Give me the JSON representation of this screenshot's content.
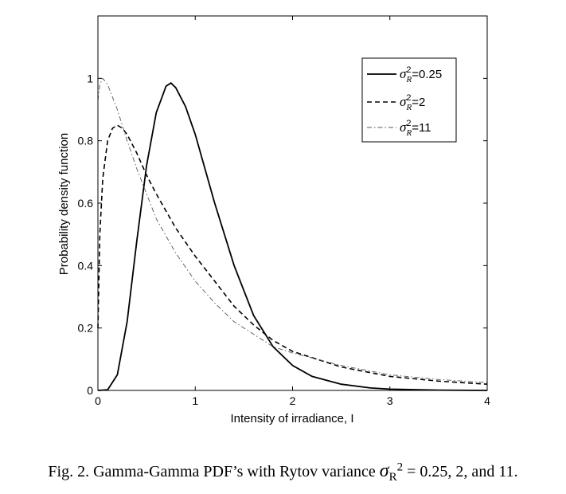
{
  "chart_data": {
    "type": "line",
    "xlabel": "Intensity of irradiance, I",
    "ylabel": "Probability density function",
    "xlim": [
      0,
      4
    ],
    "ylim": [
      0,
      1.2
    ],
    "xticks": [
      "0",
      "1",
      "2",
      "3",
      "4"
    ],
    "yticks": [
      "0",
      "0.2",
      "0.4",
      "0.6",
      "0.8",
      "1"
    ],
    "grid": false,
    "legend_position": "top-right",
    "series": [
      {
        "legend_value": "=0.25",
        "style": "solid",
        "x": [
          0,
          0.1,
          0.2,
          0.3,
          0.4,
          0.5,
          0.6,
          0.7,
          0.75,
          0.8,
          0.9,
          1.0,
          1.2,
          1.4,
          1.6,
          1.8,
          2.0,
          2.2,
          2.5,
          2.8,
          3.0,
          3.5,
          4.0
        ],
        "y": [
          0,
          0.002,
          0.05,
          0.22,
          0.48,
          0.72,
          0.89,
          0.975,
          0.985,
          0.97,
          0.91,
          0.82,
          0.6,
          0.4,
          0.24,
          0.14,
          0.08,
          0.045,
          0.02,
          0.008,
          0.004,
          0.001,
          0.0
        ]
      },
      {
        "legend_value": "=2",
        "style": "dashed",
        "x": [
          0,
          0.02,
          0.05,
          0.1,
          0.15,
          0.2,
          0.25,
          0.3,
          0.4,
          0.5,
          0.6,
          0.8,
          1.0,
          1.2,
          1.4,
          1.6,
          1.8,
          2.0,
          2.5,
          3.0,
          3.5,
          4.0
        ],
        "y": [
          0.2,
          0.5,
          0.68,
          0.8,
          0.84,
          0.85,
          0.84,
          0.82,
          0.76,
          0.69,
          0.63,
          0.52,
          0.43,
          0.35,
          0.27,
          0.21,
          0.16,
          0.125,
          0.075,
          0.045,
          0.03,
          0.02
        ]
      },
      {
        "legend_value": "=11",
        "style": "dashdot",
        "x": [
          0,
          0.02,
          0.05,
          0.1,
          0.2,
          0.3,
          0.4,
          0.5,
          0.6,
          0.8,
          1.0,
          1.2,
          1.4,
          1.6,
          1.8,
          2.0,
          2.5,
          3.0,
          3.5,
          4.0
        ],
        "y": [
          0.93,
          0.98,
          1.0,
          0.98,
          0.9,
          0.8,
          0.71,
          0.63,
          0.55,
          0.44,
          0.35,
          0.28,
          0.22,
          0.18,
          0.14,
          0.12,
          0.08,
          0.05,
          0.035,
          0.025
        ]
      }
    ]
  },
  "legend_symbol": "σ",
  "legend_sup": "2",
  "legend_sub": "R",
  "caption": {
    "prefix": "Fig. 2. Gamma-Gamma PDF’s with Rytov variance ",
    "symbol": "σ",
    "sub": "R",
    "sup": "2",
    "suffix": " = 0.25, 2, and 11."
  }
}
